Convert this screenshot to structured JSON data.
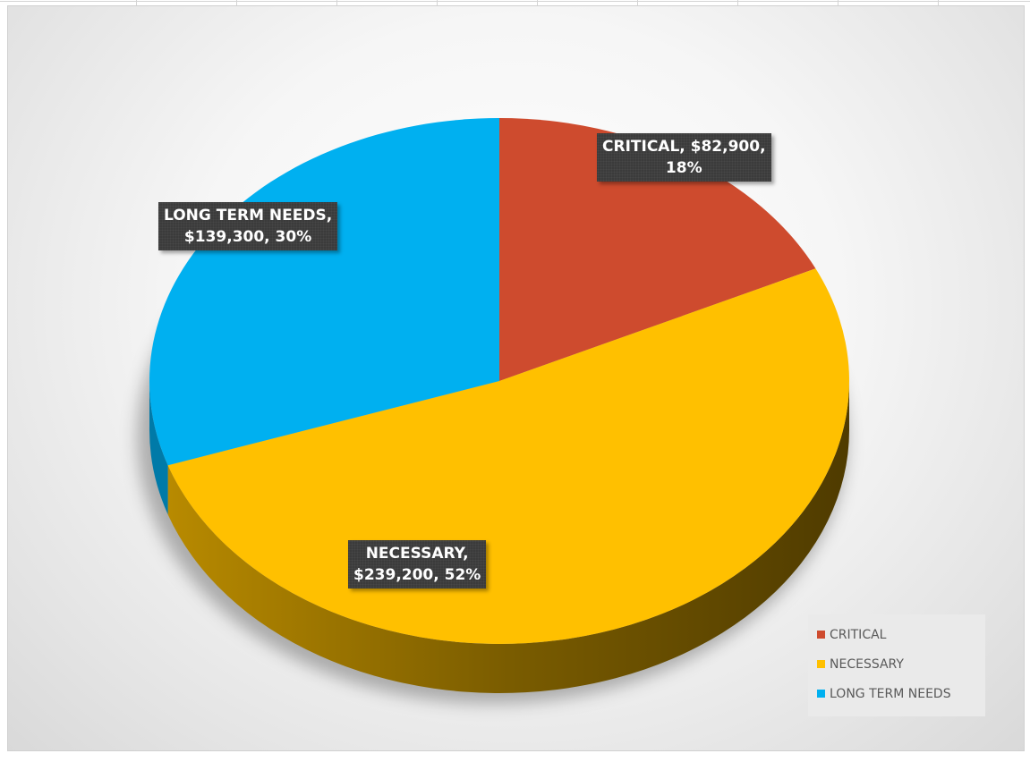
{
  "chart_data": {
    "type": "pie",
    "style": "3d",
    "categories": [
      "CRITICAL",
      "NECESSARY",
      "LONG TERM NEEDS"
    ],
    "values": [
      82900,
      239200,
      139300
    ],
    "percent": [
      18,
      52,
      30
    ],
    "colors": [
      "#CE4B2E",
      "#FFC000",
      "#00B0F0"
    ],
    "data_labels": [
      {
        "line1": "CRITICAL, $82,900,",
        "line2": "18%"
      },
      {
        "line1": "NECESSARY,",
        "line2": "$239,200, 52%"
      },
      {
        "line1": "LONG TERM NEEDS,",
        "line2": "$139,300, 30%"
      }
    ],
    "legend": {
      "position": "bottom-right",
      "items": [
        "CRITICAL",
        "NECESSARY",
        "LONG TERM NEEDS"
      ]
    }
  }
}
